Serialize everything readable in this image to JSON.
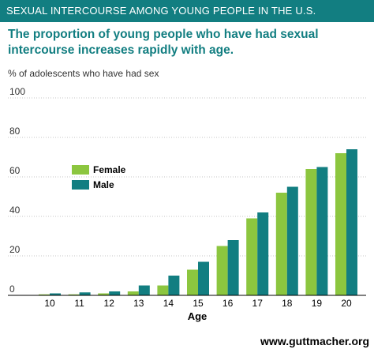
{
  "header": {
    "text": "SEXUAL INTERCOURSE AMONG YOUNG PEOPLE IN THE U.S."
  },
  "footer": {
    "text": "www.guttmacher.org"
  },
  "colors": {
    "header_bg": "#127e81",
    "title": "#127e81",
    "female": "#8cc63f",
    "male": "#127e81",
    "grid": "#b3b3b3",
    "axis": "#000000"
  },
  "chart_data": {
    "type": "bar",
    "title": "The proportion of young people who have had sexual intercourse increases rapidly with age.",
    "ylabel": "% of adolescents who have had sex",
    "xlabel": "Age",
    "categories": [
      "10",
      "11",
      "12",
      "13",
      "14",
      "15",
      "16",
      "17",
      "18",
      "19",
      "20"
    ],
    "series": [
      {
        "name": "Female",
        "values": [
          0.5,
          0.5,
          1,
          2,
          5,
          13,
          25,
          39,
          52,
          64,
          72
        ]
      },
      {
        "name": "Male",
        "values": [
          1,
          1.5,
          2,
          5,
          10,
          17,
          28,
          42,
          55,
          65,
          74
        ]
      }
    ],
    "ylim": [
      0,
      100
    ],
    "yticks": [
      "0",
      "20",
      "40",
      "60",
      "80",
      "100"
    ],
    "grid": true,
    "legend_position": "upper-left"
  }
}
